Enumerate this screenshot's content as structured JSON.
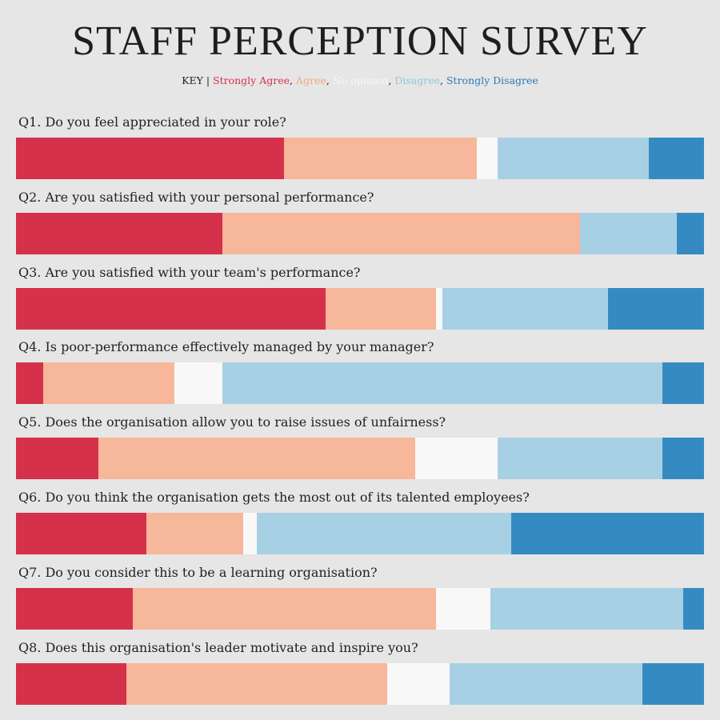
{
  "title": "STAFF PERCEPTION SURVEY",
  "key": {
    "label": "KEY |",
    "items": [
      {
        "label": "Strongly Agree",
        "color": "#d6304a"
      },
      {
        "label": "Agree",
        "color": "#f4a582"
      },
      {
        "label": "No opinion",
        "color": "#f7f7f7"
      },
      {
        "label": "Disagree",
        "color": "#92c5de"
      },
      {
        "label": "Strongly Disagree",
        "color": "#2a7ab8"
      }
    ]
  },
  "chart_data": {
    "type": "bar",
    "orientation": "horizontal",
    "stacked": "100%",
    "title": "STAFF PERCEPTION SURVEY",
    "categories": [
      "Q1. Do you feel appreciated in your role?",
      "Q2. Are you satisfied with your personal performance?",
      "Q3. Are you satisfied with your team's performance?",
      "Q4. Is poor-performance effectively managed by your manager?",
      "Q5. Does the organisation allow you to raise issues of unfairness?",
      "Q6. Do you think the organisation gets the most out of its talented employees?",
      "Q7. Do you consider this to be a learning organisation?",
      "Q8. Does this organisation's leader motivate and inspire you?"
    ],
    "series": [
      {
        "name": "Strongly Agree",
        "color": "#d5314b",
        "values": [
          39,
          30,
          45,
          4,
          12,
          19,
          17,
          16
        ]
      },
      {
        "name": "Agree",
        "color": "#f6b79b",
        "values": [
          28,
          52,
          16,
          19,
          46,
          14,
          44,
          38
        ]
      },
      {
        "name": "No opinion",
        "color": "#f8f8f8",
        "values": [
          3,
          0,
          1,
          7,
          12,
          2,
          8,
          9
        ]
      },
      {
        "name": "Disagree",
        "color": "#a8d0e5",
        "values": [
          22,
          14,
          24,
          64,
          24,
          37,
          28,
          28
        ]
      },
      {
        "name": "Strongly Disagree",
        "color": "#358bc1",
        "values": [
          8,
          4,
          14,
          6,
          6,
          28,
          3,
          9
        ]
      }
    ],
    "xlim": [
      0,
      100
    ],
    "legend": "top-center",
    "grid": false
  }
}
